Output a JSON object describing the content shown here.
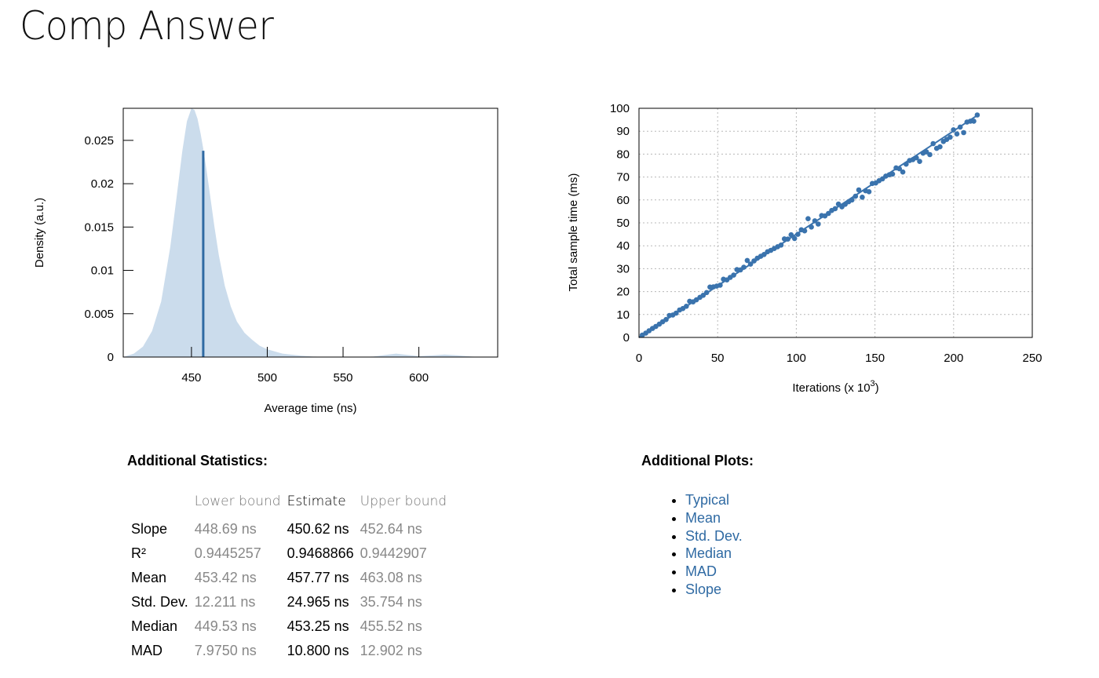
{
  "title": "Comp Answer",
  "chart_data": [
    {
      "type": "area",
      "xlabel": "Average time (ns)",
      "ylabel": "Density (a.u.)",
      "xlim": [
        405,
        652
      ],
      "ylim": [
        0,
        0.0287
      ],
      "x_ticks": [
        450,
        500,
        550,
        600
      ],
      "y_ticks": [
        0,
        0.005,
        0.01,
        0.015,
        0.02,
        0.025
      ],
      "y_tick_labels": [
        "0",
        "0.005",
        "0.01",
        "0.015",
        "0.02",
        "0.025"
      ],
      "fill_color": "#cbdcec",
      "line_color": "#2f6aa3",
      "mean_line": {
        "x": 457.77,
        "y": 0.0238
      },
      "density": {
        "x": [
          405,
          412,
          418,
          424,
          430,
          436,
          440,
          444,
          447,
          450,
          452,
          454,
          456,
          458,
          460,
          462,
          465,
          468,
          472,
          476,
          480,
          485,
          490,
          495,
          500,
          510,
          520,
          530,
          540,
          550,
          560,
          570,
          580,
          585,
          590,
          600,
          610,
          617,
          625,
          635,
          642
        ],
        "y": [
          0,
          0.0004,
          0.0012,
          0.003,
          0.0064,
          0.0127,
          0.0182,
          0.0238,
          0.0272,
          0.0287,
          0.0285,
          0.0275,
          0.0258,
          0.0238,
          0.0215,
          0.019,
          0.0152,
          0.0118,
          0.0082,
          0.0058,
          0.0041,
          0.0028,
          0.002,
          0.0013,
          0.0009,
          0.0004,
          0.0002,
          5e-05,
          2e-05,
          0,
          0,
          5e-05,
          0.0003,
          0.0004,
          0.0003,
          0.0001,
          0.0002,
          0.0003,
          0.0002,
          5e-05,
          0
        ]
      }
    },
    {
      "type": "scatter",
      "xlabel": "Iterations (x 10",
      "xlabel_sup": "3",
      "xlabel_close": ")",
      "ylabel": "Total sample time (ms)",
      "xlim": [
        0,
        250
      ],
      "ylim": [
        0,
        100
      ],
      "x_ticks": [
        0,
        50,
        100,
        150,
        200,
        250
      ],
      "y_ticks": [
        0,
        10,
        20,
        30,
        40,
        50,
        60,
        70,
        80,
        90,
        100
      ],
      "grid": true,
      "point_color": "#3a73ad",
      "regression": {
        "x": [
          0,
          215
        ],
        "y": [
          0,
          96.9
        ]
      },
      "points": {
        "x": [
          2.1,
          4.3,
          6.4,
          8.6,
          10.7,
          12.9,
          15.0,
          17.2,
          19.3,
          21.5,
          23.6,
          25.8,
          27.9,
          30.1,
          32.2,
          34.4,
          36.5,
          38.7,
          40.8,
          43.0,
          45.1,
          47.3,
          49.4,
          51.6,
          53.7,
          55.9,
          58.0,
          60.2,
          62.3,
          64.5,
          66.6,
          68.8,
          70.9,
          73.1,
          75.2,
          77.4,
          79.5,
          81.7,
          83.8,
          86.0,
          88.1,
          90.3,
          92.4,
          94.6,
          96.7,
          98.9,
          101.0,
          103.2,
          105.3,
          107.5,
          109.6,
          111.8,
          113.9,
          116.1,
          118.2,
          120.4,
          122.5,
          124.7,
          126.8,
          129.0,
          131.1,
          133.3,
          135.4,
          137.6,
          139.7,
          141.9,
          144.0,
          146.2,
          148.3,
          150.5,
          152.6,
          154.8,
          156.9,
          159.1,
          161.2,
          163.4,
          165.5,
          167.7,
          169.8,
          172.0,
          174.1,
          176.3,
          178.4,
          180.6,
          182.7,
          184.9,
          187.0,
          189.2,
          191.3,
          193.5,
          195.6,
          197.8,
          199.9,
          202.1,
          204.2,
          206.4,
          208.5,
          210.7,
          212.8,
          215.0
        ],
        "y": [
          1.0,
          1.9,
          2.9,
          3.9,
          4.8,
          5.8,
          6.8,
          7.8,
          9.6,
          9.8,
          10.6,
          12.0,
          12.6,
          13.6,
          15.8,
          15.5,
          16.4,
          17.5,
          18.4,
          19.6,
          22.0,
          22.1,
          22.4,
          22.8,
          25.4,
          25.1,
          26.2,
          27.2,
          29.6,
          29.5,
          30.6,
          33.6,
          32.0,
          33.4,
          34.6,
          35.4,
          36.2,
          37.4,
          38.0,
          38.8,
          39.6,
          40.3,
          43.0,
          42.9,
          44.8,
          43.2,
          45.0,
          47.0,
          46.5,
          51.8,
          48.2,
          50.9,
          49.5,
          53.2,
          53.0,
          54.1,
          55.4,
          56.2,
          58.2,
          57.0,
          58.1,
          59.2,
          60.0,
          61.6,
          64.4,
          61.2,
          64.0,
          63.6,
          67.2,
          67.4,
          68.4,
          69.2,
          70.4,
          71.0,
          71.3,
          74.0,
          73.6,
          72.2,
          75.6,
          77.2,
          77.6,
          78.4,
          76.8,
          80.4,
          81.0,
          79.8,
          84.6,
          82.5,
          83.2,
          85.5,
          86.4,
          87.4,
          90.6,
          88.8,
          91.8,
          89.4,
          94.0,
          94.4,
          94.4,
          97.1
        ]
      }
    }
  ],
  "stats": {
    "heading": "Additional Statistics:",
    "columns": [
      "",
      "Lower bound",
      "Estimate",
      "Upper bound"
    ],
    "rows": [
      [
        "Slope",
        "448.69 ns",
        "450.62 ns",
        "452.64 ns"
      ],
      [
        "R²",
        "0.9445257",
        "0.9468866",
        "0.9442907"
      ],
      [
        "Mean",
        "453.42 ns",
        "457.77 ns",
        "463.08 ns"
      ],
      [
        "Std. Dev.",
        "12.211 ns",
        "24.965 ns",
        "35.754 ns"
      ],
      [
        "Median",
        "449.53 ns",
        "453.25 ns",
        "455.52 ns"
      ],
      [
        "MAD",
        "7.9750 ns",
        "10.800 ns",
        "12.902 ns"
      ]
    ]
  },
  "plots": {
    "heading": "Additional Plots:",
    "links": [
      "Typical",
      "Mean",
      "Std. Dev.",
      "Median",
      "MAD",
      "Slope"
    ],
    "link_color": "#2f6aa3"
  }
}
